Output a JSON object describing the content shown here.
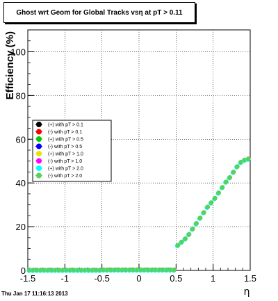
{
  "chart_data": {
    "type": "scatter",
    "title": "Ghost wrt Geom for Global Tracks vsη at pT > 0.11",
    "xlabel": "η",
    "ylabel": "Efficiency (%)",
    "xlim": [
      -1.5,
      1.5
    ],
    "ylim": [
      0,
      110
    ],
    "xticks": [
      "-1.5",
      "-1",
      "-0.5",
      "0",
      "0.5",
      "1",
      "1.5"
    ],
    "xtick_values": [
      -1.5,
      -1,
      -0.5,
      0,
      0.5,
      1,
      1.5
    ],
    "yticks": [
      "0",
      "20",
      "40",
      "60",
      "80",
      "100"
    ],
    "ytick_values": [
      0,
      20,
      40,
      60,
      80,
      100
    ],
    "grid": true,
    "legend_position": "middle-left",
    "series": [
      {
        "name": "(+) with pT > 0.1",
        "color": "#000000"
      },
      {
        "name": "(-) with pT > 0.1",
        "color": "#ff0000"
      },
      {
        "name": "(+) with pT > 0.5",
        "color": "#00cc00"
      },
      {
        "name": "(-) with pT > 0.5",
        "color": "#0000ff"
      },
      {
        "name": "(+) with pT > 1.0",
        "color": "#e5e500"
      },
      {
        "name": "(-) with pT > 1.0",
        "color": "#ff00ff"
      },
      {
        "name": "(+) with pT > 2.0",
        "color": "#00ffff"
      },
      {
        "name": "(-) with pT > 2.0",
        "color": "#5ccf5c"
      }
    ],
    "x": [
      -1.475,
      -1.425,
      -1.375,
      -1.325,
      -1.275,
      -1.225,
      -1.175,
      -1.125,
      -1.075,
      -1.025,
      -0.975,
      -0.925,
      -0.875,
      -0.825,
      -0.775,
      -0.725,
      -0.675,
      -0.625,
      -0.575,
      -0.525,
      -0.475,
      -0.425,
      -0.375,
      -0.325,
      -0.275,
      -0.225,
      -0.175,
      -0.125,
      -0.075,
      -0.025,
      0.025,
      0.075,
      0.125,
      0.175,
      0.225,
      0.275,
      0.325,
      0.375,
      0.425,
      0.475,
      0.525,
      0.575,
      0.625,
      0.675,
      0.725,
      0.775,
      0.825,
      0.875,
      0.925,
      0.975,
      1.025,
      1.075,
      1.125,
      1.175,
      1.225,
      1.275,
      1.325,
      1.375,
      1.425,
      1.475
    ],
    "y": [
      0.2,
      0.2,
      0.2,
      0.2,
      0.2,
      0.2,
      0.2,
      0.2,
      0.2,
      0.2,
      0.2,
      0.2,
      0.2,
      0.2,
      0.2,
      0.2,
      0.2,
      0.2,
      0.2,
      0.2,
      0.3,
      0.3,
      0.3,
      0.3,
      0.3,
      0.3,
      0.3,
      0.3,
      0.3,
      0.3,
      0.3,
      0.3,
      0.3,
      0.3,
      0.3,
      0.3,
      0.3,
      0.3,
      0.3,
      0.3,
      11.5,
      13,
      14.5,
      16.5,
      19,
      21.5,
      24,
      26.5,
      29,
      31,
      33,
      35.5,
      38,
      40.5,
      42.5,
      45,
      47.5,
      49.5,
      50.5,
      51
    ]
  },
  "footer": "Thu Jan 17 11:16:13 2013"
}
